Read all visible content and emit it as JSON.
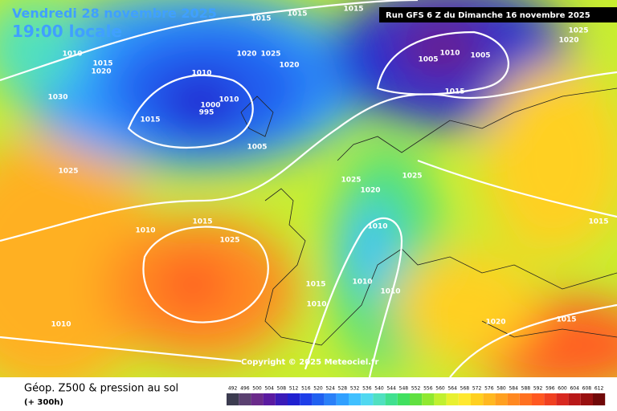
{
  "header": {
    "date": "Vendredi 28 novembre 2025",
    "time": "19:00 locale",
    "run": "Run GFS 6 Z du Dimanche 16 novembre 2025"
  },
  "copyright": "Copyright © 2025 Meteociel.fr",
  "footer": {
    "title": "Géop. Z500 & pression au sol",
    "lead": "(+ 300h)"
  },
  "isobar_labels": [
    "1015",
    "1015",
    "1015",
    "1020",
    "1025",
    "1010",
    "1015",
    "1020",
    "1020",
    "1025",
    "1020",
    "1005",
    "1010",
    "1005",
    "1010",
    "1030",
    "1010",
    "1000",
    "995",
    "1015",
    "1015",
    "1005",
    "1025",
    "1025",
    "1020",
    "1025",
    "1015",
    "1010",
    "1025",
    "1010",
    "1015",
    "1015",
    "1010",
    "1010",
    "1010",
    "1010",
    "1020",
    "1015"
  ],
  "legend": {
    "values": [
      492,
      496,
      500,
      504,
      508,
      512,
      516,
      520,
      524,
      528,
      532,
      536,
      540,
      544,
      548,
      552,
      556,
      560,
      564,
      568,
      572,
      576,
      580,
      584,
      588,
      592,
      596,
      600,
      604,
      608,
      612
    ],
    "colors": [
      "#3c3c50",
      "#5a4070",
      "#6a2a8a",
      "#5a1aa0",
      "#3a1ab8",
      "#2020d0",
      "#1e3ee8",
      "#2060f0",
      "#2a80f8",
      "#30a0ff",
      "#40c0ff",
      "#50d8f0",
      "#50e0c0",
      "#40e090",
      "#40e060",
      "#60e040",
      "#90e830",
      "#c0f030",
      "#e8f030",
      "#ffe830",
      "#ffd020",
      "#ffb820",
      "#ffa020",
      "#ff8820",
      "#ff7020",
      "#ff5820",
      "#f04020",
      "#d82820",
      "#b81818",
      "#981010",
      "#700808"
    ]
  }
}
